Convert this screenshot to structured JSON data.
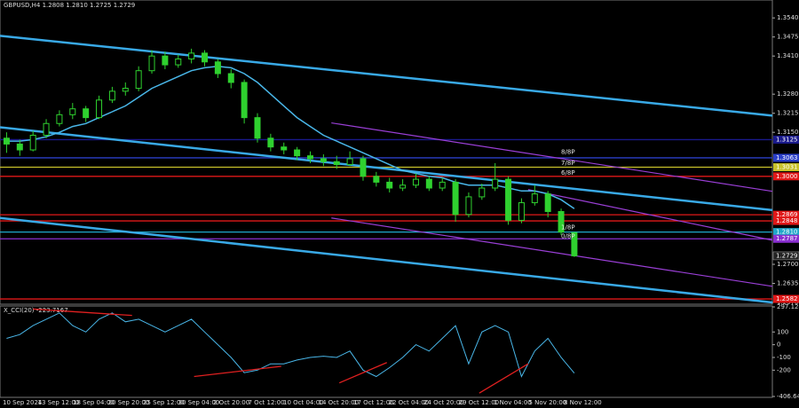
{
  "chart_data": {
    "type": "candlestick",
    "title": "GBPUSD,H4 1.2808 1.2810 1.2725 1.2729",
    "xlim": [
      -0.5,
      58
    ],
    "ylim": [
      1.2564,
      1.3601
    ],
    "yticks": [
      {
        "value": 1.354,
        "label": "1.3540"
      },
      1.3475,
      {
        "value": 1.341,
        "label": "1.3410"
      },
      {
        "value": 1.328,
        "label": "1.3280"
      },
      1.3215,
      {
        "value": 1.315,
        "label": "1.3150"
      },
      {
        "value": 1.27,
        "label": "1.2700"
      },
      1.2635,
      {
        "value": 1.257,
        "label": "1.2570"
      }
    ],
    "categories": [
      "10 Sep 2024",
      "13 Sep 12:00",
      "18 Sep 04:00",
      "20 Sep 20:00",
      "25 Sep 12:00",
      "30 Sep 04:00",
      "2 Oct 20:00",
      "7 Oct 12:00",
      "10 Oct 04:00",
      "14 Oct 20:00",
      "17 Oct 12:00",
      "22 Oct 04:00",
      "24 Oct 20:00",
      "29 Oct 12:00",
      "1 Nov 04:00",
      "5 Nov 20:00",
      "8 Nov 12:00"
    ],
    "up_color": "#2fd12f",
    "candles": [
      [
        1.313,
        1.315,
        1.308,
        1.311
      ],
      [
        1.311,
        1.3125,
        1.307,
        1.309
      ],
      [
        1.309,
        1.3155,
        1.3085,
        1.314
      ],
      [
        1.314,
        1.3195,
        1.313,
        1.318
      ],
      [
        1.318,
        1.3225,
        1.317,
        1.321
      ],
      [
        1.321,
        1.325,
        1.3195,
        1.323
      ],
      [
        1.323,
        1.324,
        1.3185,
        1.32
      ],
      [
        1.32,
        1.3275,
        1.3195,
        1.326
      ],
      [
        1.326,
        1.3305,
        1.325,
        1.329
      ],
      [
        1.329,
        1.332,
        1.3275,
        1.33
      ],
      [
        1.33,
        1.3375,
        1.329,
        1.336
      ],
      [
        1.336,
        1.343,
        1.335,
        1.341
      ],
      [
        1.341,
        1.3425,
        1.3365,
        1.338
      ],
      [
        1.338,
        1.3415,
        1.337,
        1.34
      ],
      [
        1.34,
        1.3435,
        1.3385,
        1.342
      ],
      [
        1.342,
        1.343,
        1.3375,
        1.339
      ],
      [
        1.339,
        1.34,
        1.3335,
        1.335
      ],
      [
        1.335,
        1.3365,
        1.33,
        1.332
      ],
      [
        1.332,
        1.333,
        1.318,
        1.32
      ],
      [
        1.32,
        1.3215,
        1.3115,
        1.313
      ],
      [
        1.313,
        1.3145,
        1.3085,
        1.31
      ],
      [
        1.31,
        1.3115,
        1.3075,
        1.309
      ],
      [
        1.309,
        1.31,
        1.3055,
        1.307
      ],
      [
        1.307,
        1.3085,
        1.3045,
        1.306
      ],
      [
        1.306,
        1.3075,
        1.3035,
        1.305
      ],
      [
        1.305,
        1.307,
        1.3025,
        1.304
      ],
      [
        1.304,
        1.3085,
        1.3035,
        1.306
      ],
      [
        1.306,
        1.307,
        1.2985,
        1.3
      ],
      [
        1.3,
        1.3015,
        1.2965,
        1.298
      ],
      [
        1.298,
        1.2995,
        1.2945,
        1.296
      ],
      [
        1.296,
        1.299,
        1.295,
        1.297
      ],
      [
        1.297,
        1.301,
        1.296,
        1.299
      ],
      [
        1.299,
        1.3,
        1.295,
        1.296
      ],
      [
        1.296,
        1.2995,
        1.295,
        1.298
      ],
      [
        1.298,
        1.299,
        1.2845,
        1.287
      ],
      [
        1.287,
        1.2945,
        1.286,
        1.293
      ],
      [
        1.293,
        1.2975,
        1.292,
        1.296
      ],
      [
        1.296,
        1.3045,
        1.295,
        1.299
      ],
      [
        1.299,
        1.3,
        1.2835,
        1.285
      ],
      [
        1.285,
        1.2925,
        1.284,
        1.291
      ],
      [
        1.291,
        1.297,
        1.29,
        1.294
      ],
      [
        1.294,
        1.295,
        1.286,
        1.288
      ],
      [
        1.288,
        1.289,
        1.28,
        1.281
      ],
      [
        1.2808,
        1.281,
        1.2725,
        1.2729
      ]
    ],
    "ma": {
      "color": "#49b6e8",
      "values": [
        1.312,
        1.312,
        1.3125,
        1.3135,
        1.315,
        1.317,
        1.318,
        1.32,
        1.322,
        1.324,
        1.327,
        1.33,
        1.332,
        1.334,
        1.336,
        1.337,
        1.3375,
        1.337,
        1.335,
        1.332,
        1.328,
        1.324,
        1.32,
        1.317,
        1.314,
        1.312,
        1.31,
        1.308,
        1.306,
        1.304,
        1.302,
        1.301,
        1.3,
        1.2995,
        1.298,
        1.297,
        1.297,
        1.297,
        1.296,
        1.295,
        1.295,
        1.294,
        1.292,
        1.289
      ]
    },
    "channels": [
      {
        "color": "#39a9e6",
        "width": 2.5,
        "x": [
          -0.5,
          58
        ],
        "values": [
          1.3479,
          1.3207
        ]
      },
      {
        "color": "#39a9e6",
        "width": 2.5,
        "x": [
          -0.5,
          58
        ],
        "values": [
          1.3167,
          1.2885
        ]
      },
      {
        "color": "#39a9e6",
        "width": 2.5,
        "x": [
          -0.5,
          58
        ],
        "values": [
          1.2858,
          1.257
        ]
      },
      {
        "color": "#9a3fd6",
        "width": 1.2,
        "x": [
          24.6,
          58
        ],
        "values": [
          1.3182,
          1.2949
        ]
      },
      {
        "color": "#9a3fd6",
        "width": 1.2,
        "x": [
          39.5,
          58
        ],
        "values": [
          1.2955,
          1.2782
        ]
      },
      {
        "color": "#9a3fd6",
        "width": 1.2,
        "x": [
          24.6,
          58
        ],
        "values": [
          1.2858,
          1.2625
        ]
      }
    ],
    "levels": [
      {
        "value": 1.3125,
        "label": "1.3125",
        "color": "#1a1a8c"
      },
      {
        "value": 1.3063,
        "label": "1.3063",
        "color": "#2a3fc8"
      },
      {
        "value": 1.3031,
        "label": "1.3031",
        "color": "#c8c22a"
      },
      {
        "value": 1.3,
        "label": "1.3000",
        "color": "#e01818"
      },
      {
        "value": 1.2869,
        "label": "1.2869",
        "color": "#e01818"
      },
      {
        "value": 1.2848,
        "label": "1.2848",
        "color": "#e01818"
      },
      {
        "value": 1.281,
        "label": "1.2810",
        "color": "#1fa7c9"
      },
      {
        "value": 1.2787,
        "label": "1.2787",
        "color": "#8a2fd0"
      },
      {
        "value": 1.2582,
        "label": "1.2582",
        "color": "#e01818"
      }
    ],
    "annotations": [
      {
        "text": "8/8P",
        "x": 42,
        "value": 1.3082
      },
      {
        "text": "7/8P",
        "x": 42,
        "value": 1.3045
      },
      {
        "text": "6/8P",
        "x": 42,
        "value": 1.3012
      },
      {
        "text": "1/8P",
        "x": 42,
        "value": 1.2825
      },
      {
        "text": "0/8P",
        "x": 42,
        "value": 1.2795
      }
    ],
    "last": {
      "value": 1.2729,
      "label": "1.2729"
    },
    "indicator": {
      "title": "X_CCI(20) -223.7167",
      "color": "#49b6e8",
      "ylim": [
        -406.6477,
        297.1248
      ],
      "yticks": [
        297.1248,
        100,
        0,
        -100,
        -200,
        -406.6477
      ],
      "values": [
        50,
        80,
        150,
        200,
        250,
        150,
        100,
        200,
        250,
        180,
        200,
        150,
        100,
        150,
        200,
        100,
        0,
        -100,
        -220,
        -200,
        -150,
        -150,
        -120,
        -100,
        -90,
        -100,
        -50,
        -200,
        -250,
        -180,
        -100,
        0,
        -50,
        50,
        150,
        -150,
        100,
        150,
        100,
        -250,
        -50,
        50,
        -100,
        -223.7167
      ],
      "lines": [
        {
          "x": [
            2,
            9.5
          ],
          "values": [
            280,
            230
          ]
        },
        {
          "x": [
            14.2,
            20.8
          ],
          "values": [
            -250,
            -170
          ]
        },
        {
          "x": [
            25.2,
            28.8
          ],
          "values": [
            -300,
            -140
          ]
        },
        {
          "x": [
            35.8,
            39.5
          ],
          "values": [
            -380,
            -150
          ]
        }
      ],
      "line_color": "#e02020"
    }
  }
}
